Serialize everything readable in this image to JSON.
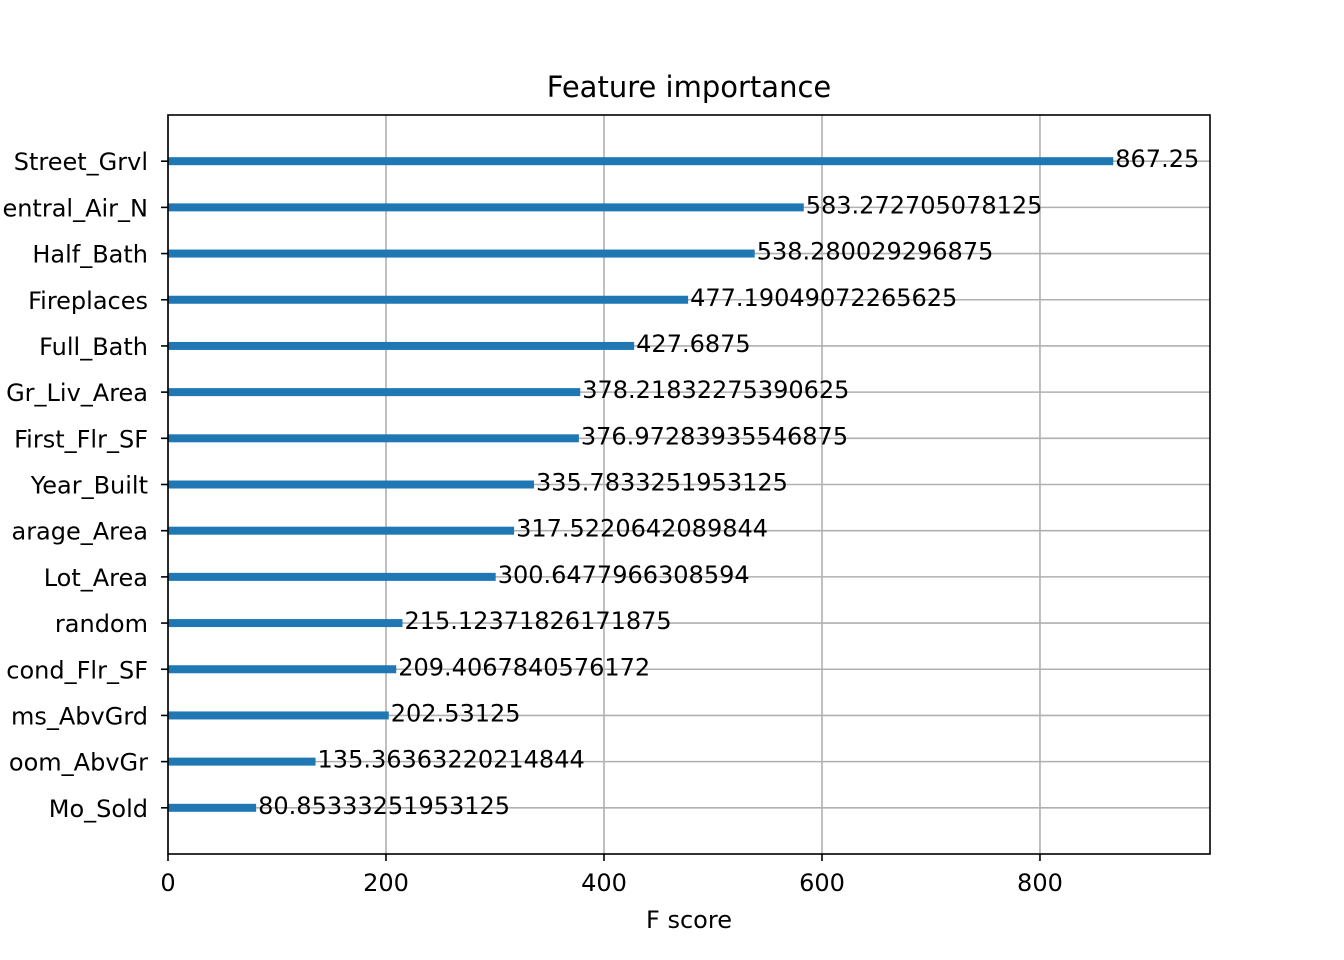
{
  "chart_data": {
    "type": "barh",
    "title": "Feature importance",
    "x_label": "F score",
    "categories": [
      "Street_Grvl",
      "entral_Air_N",
      "Half_Bath",
      "Fireplaces",
      "Full_Bath",
      "Gr_Liv_Area",
      "First_Flr_SF",
      "Year_Built",
      "arage_Area",
      "Lot_Area",
      "random",
      "cond_Flr_SF",
      "ms_AbvGrd",
      "oom_AbvGr",
      "Mo_Sold"
    ],
    "values": [
      867.25,
      583.272705078125,
      538.280029296875,
      477.19049072265625,
      427.6875,
      378.21832275390625,
      376.97283935546875,
      335.7833251953125,
      317.5220642089844,
      300.6477966308594,
      215.12371826171875,
      209.4067840576172,
      202.53125,
      135.36363220214844,
      80.85333251953125
    ],
    "color": "#1f77b4",
    "xlim": [
      0,
      956
    ],
    "xticks": [
      0,
      200,
      400,
      600,
      800
    ],
    "grid": true
  }
}
